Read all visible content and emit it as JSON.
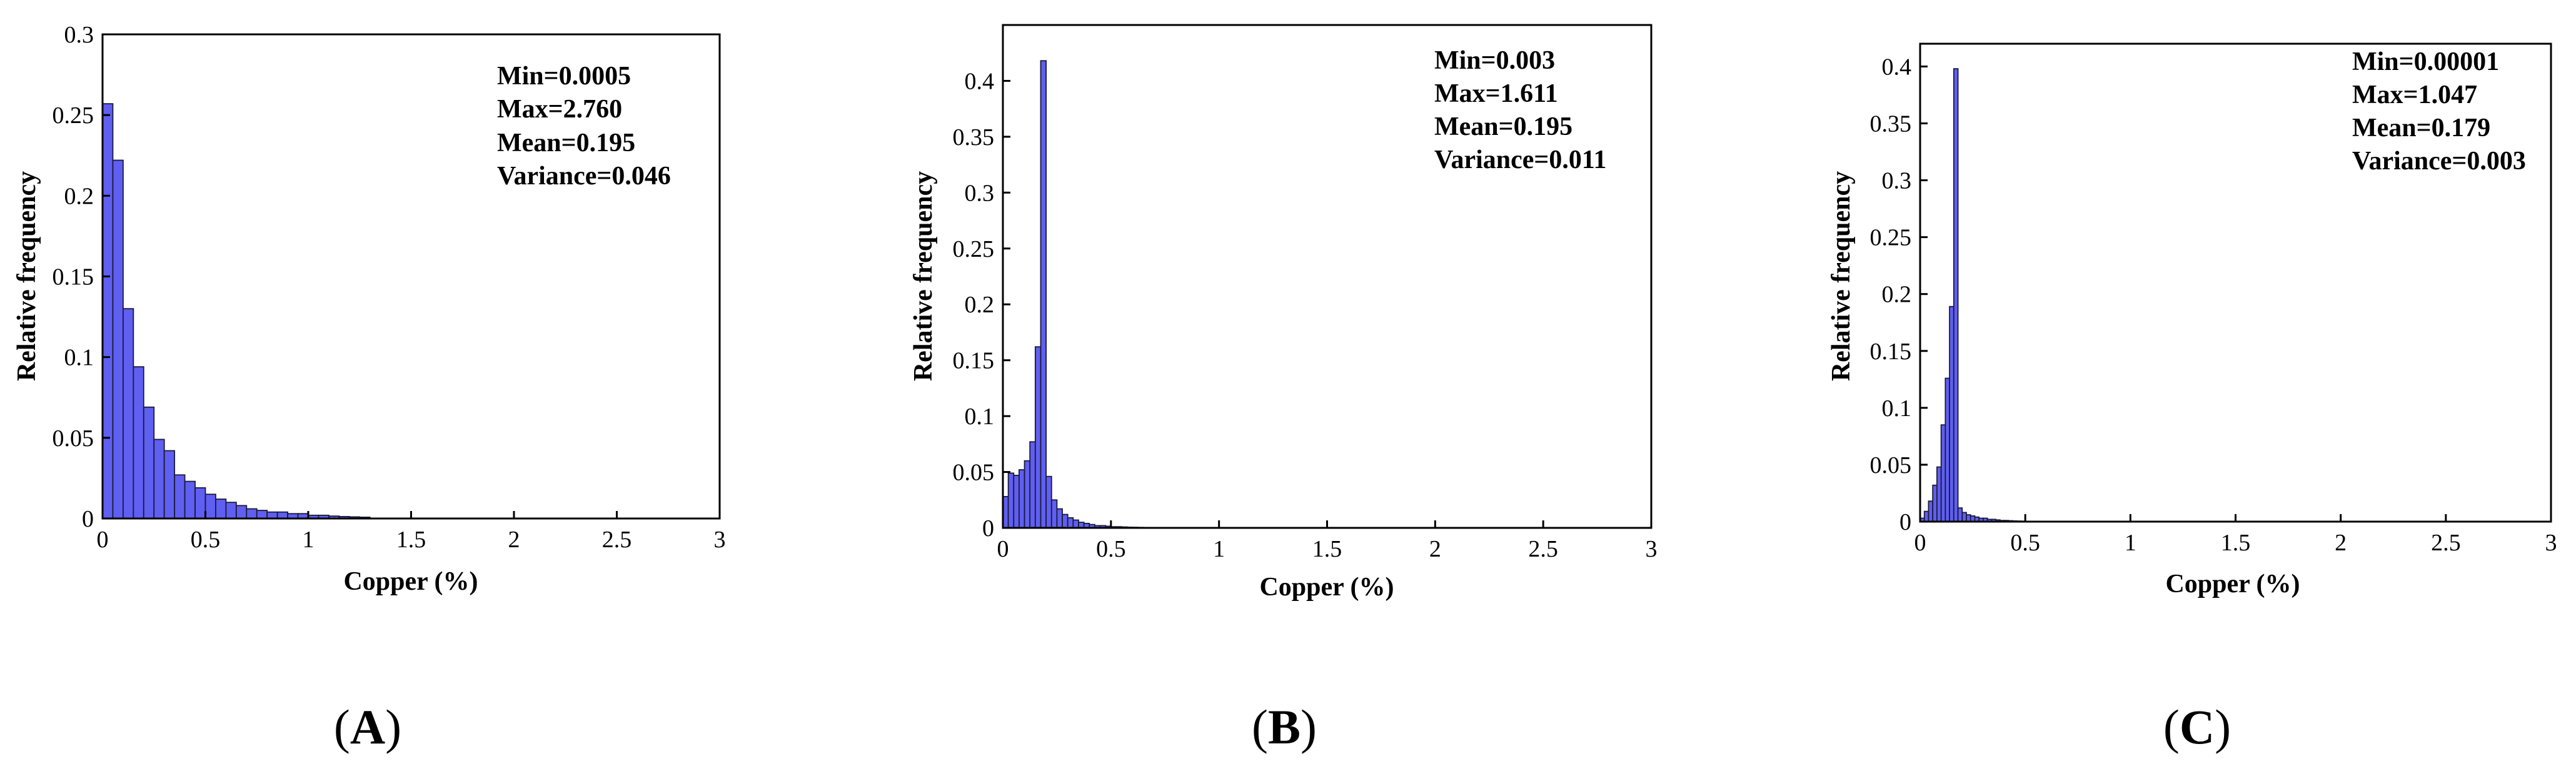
{
  "colors": {
    "bar_fill": "#5f5ff2",
    "bar_edge": "#1a1a3a",
    "axis": "#000000"
  },
  "chart_data": [
    {
      "type": "bar",
      "panel_label": "A",
      "xlabel": "Copper (%)",
      "ylabel": "Relative frequency",
      "xlim": [
        0,
        3
      ],
      "ylim": [
        0,
        0.3
      ],
      "x_ticks": [
        0,
        0.5,
        1,
        1.5,
        2,
        2.5,
        3
      ],
      "x_tick_labels": [
        "0",
        "0.5",
        "1",
        "1.5",
        "2",
        "2.5",
        "3"
      ],
      "y_ticks": [
        0,
        0.05,
        0.1,
        0.15,
        0.2,
        0.25,
        0.3
      ],
      "y_tick_labels": [
        "0",
        "0.05",
        "0.1",
        "0.15",
        "0.2",
        "0.25",
        "0.3"
      ],
      "bin_width": 0.05,
      "bin_start": 0,
      "values": [
        0.257,
        0.222,
        0.13,
        0.094,
        0.069,
        0.049,
        0.042,
        0.027,
        0.023,
        0.019,
        0.015,
        0.012,
        0.01,
        0.008,
        0.006,
        0.005,
        0.004,
        0.004,
        0.003,
        0.003,
        0.002,
        0.002,
        0.0015,
        0.0012,
        0.001,
        0.0008
      ],
      "stats": [
        "Min=0.0005",
        "Max=2.760",
        "Mean=0.195",
        "Variance=0.046"
      ]
    },
    {
      "type": "bar",
      "panel_label": "B",
      "xlabel": "Copper (%)",
      "ylabel": "Relative frequency",
      "xlim": [
        0,
        3
      ],
      "ylim": [
        0,
        0.45
      ],
      "x_ticks": [
        0,
        0.5,
        1,
        1.5,
        2,
        2.5,
        3
      ],
      "x_tick_labels": [
        "0",
        "0.5",
        "1",
        "1.5",
        "2",
        "2.5",
        "3"
      ],
      "y_ticks": [
        0,
        0.05,
        0.1,
        0.15,
        0.2,
        0.25,
        0.3,
        0.35,
        0.4
      ],
      "y_tick_labels": [
        "0",
        "0.05",
        "0.1",
        "0.15",
        "0.2",
        "0.25",
        "0.3",
        "0.35",
        "0.4"
      ],
      "bin_width": 0.025,
      "bin_start": 0,
      "values": [
        0.028,
        0.049,
        0.047,
        0.052,
        0.06,
        0.077,
        0.162,
        0.418,
        0.046,
        0.025,
        0.017,
        0.012,
        0.009,
        0.007,
        0.005,
        0.004,
        0.003,
        0.002,
        0.002,
        0.0015,
        0.001,
        0.001,
        0.0008,
        0.0006,
        0.0005,
        0.0004,
        0.0003,
        0.0003,
        0.0002,
        0.0002
      ],
      "stats": [
        "Min=0.003",
        "Max=1.611",
        "Mean=0.195",
        "Variance=0.011"
      ]
    },
    {
      "type": "bar",
      "panel_label": "C",
      "xlabel": "Copper (%)",
      "ylabel": "Relative frequency",
      "xlim": [
        0,
        3
      ],
      "ylim": [
        0,
        0.42
      ],
      "x_ticks": [
        0,
        0.5,
        1,
        1.5,
        2,
        2.5,
        3
      ],
      "x_tick_labels": [
        "0",
        "0.5",
        "1",
        "1.5",
        "2",
        "2.5",
        "3"
      ],
      "y_ticks": [
        0,
        0.05,
        0.1,
        0.15,
        0.2,
        0.25,
        0.3,
        0.35,
        0.4
      ],
      "y_tick_labels": [
        "0",
        "0.05",
        "0.1",
        "0.15",
        "0.2",
        "0.25",
        "0.3",
        "0.35",
        "0.4"
      ],
      "bin_width": 0.02,
      "bin_start": 0,
      "values": [
        0.003,
        0.009,
        0.018,
        0.032,
        0.048,
        0.085,
        0.126,
        0.189,
        0.398,
        0.012,
        0.008,
        0.006,
        0.005,
        0.004,
        0.003,
        0.003,
        0.002,
        0.002,
        0.0015,
        0.001,
        0.001,
        0.0008,
        0.0006,
        0.0005,
        0.0004
      ],
      "stats": [
        "Min=0.00001",
        "Max=1.047",
        "Mean=0.179",
        "Variance=0.003"
      ]
    }
  ]
}
